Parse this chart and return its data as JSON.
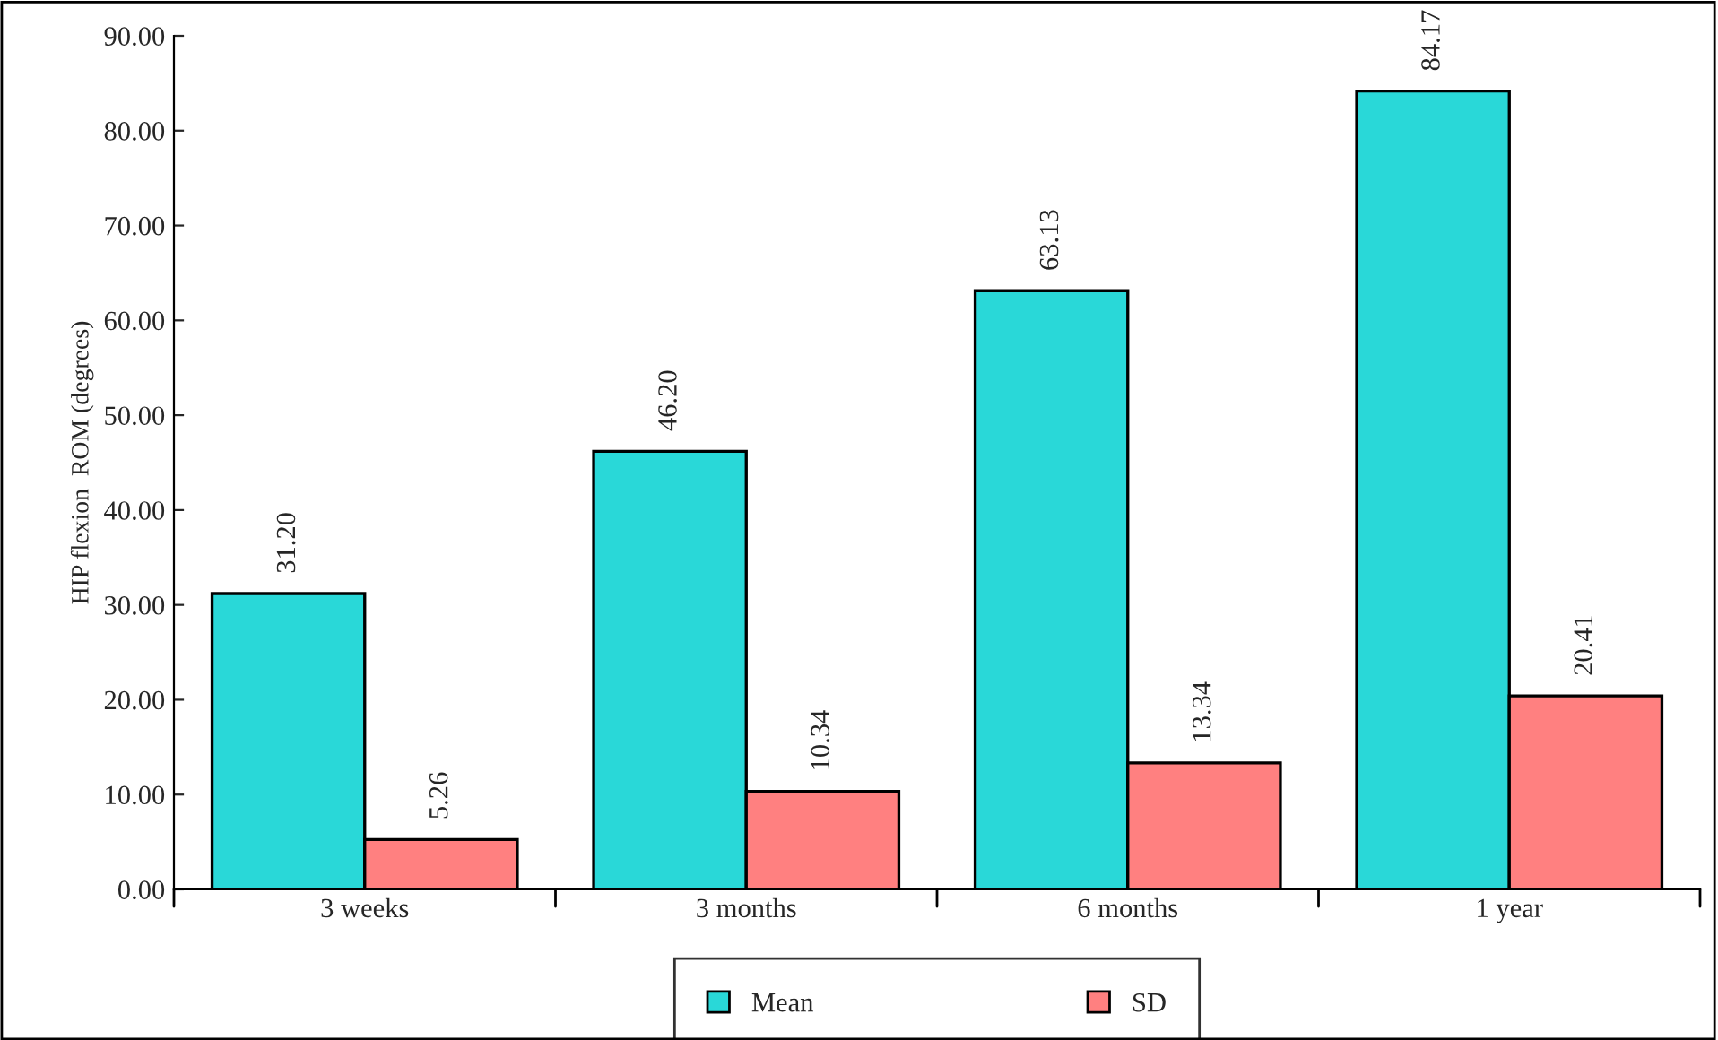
{
  "chart_data": {
    "type": "bar",
    "ylabel": "HIP flexion  ROM (degrees)",
    "categories": [
      "3 weeks",
      "3 months",
      "6 months",
      "1 year"
    ],
    "series": [
      {
        "name": "Mean",
        "color": "#29d8d8",
        "values": [
          31.2,
          46.2,
          63.13,
          84.17
        ],
        "value_labels": [
          "31.20",
          "46.20",
          "63.13",
          "84.17"
        ]
      },
      {
        "name": "SD",
        "color": "#ff8080",
        "values": [
          5.26,
          10.34,
          13.34,
          20.41
        ],
        "value_labels": [
          "5.26",
          "10.34",
          "13.34",
          "20.41"
        ]
      }
    ],
    "ylim": [
      0,
      90
    ],
    "yticks": [
      {
        "value": 0,
        "label": "0.00"
      },
      {
        "value": 10,
        "label": "10.00"
      },
      {
        "value": 20,
        "label": "20.00"
      },
      {
        "value": 30,
        "label": "30.00"
      },
      {
        "value": 40,
        "label": "40.00"
      },
      {
        "value": 50,
        "label": "50.00"
      },
      {
        "value": 60,
        "label": "60.00"
      },
      {
        "value": 70,
        "label": "70.00"
      },
      {
        "value": 80,
        "label": "80.00"
      },
      {
        "value": 90,
        "label": "90.00"
      }
    ],
    "grid": false,
    "legend": "bottom"
  }
}
